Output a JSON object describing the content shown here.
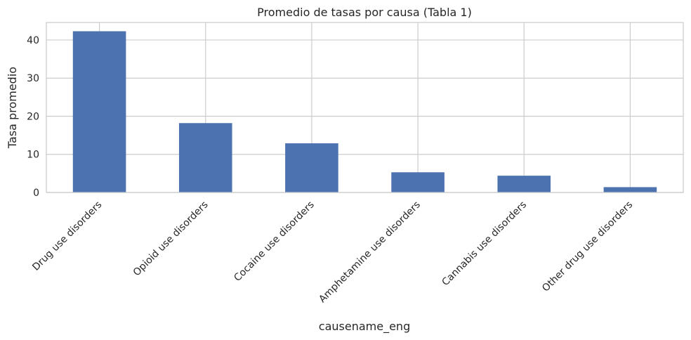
{
  "chart_data": {
    "type": "bar",
    "title": "Promedio de tasas por causa (Tabla 1)",
    "xlabel": "causename_eng",
    "ylabel": "Tasa promedio",
    "categories": [
      "Drug use disorders",
      "Opioid use disorders",
      "Cocaine use disorders",
      "Amphetamine use disorders",
      "Cannabis use disorders",
      "Other drug use disorders"
    ],
    "values": [
      42.3,
      18.2,
      12.9,
      5.3,
      4.4,
      1.4
    ],
    "ylim": [
      0,
      44.6
    ],
    "yticks": [
      0,
      10,
      20,
      30,
      40
    ],
    "grid": true,
    "bar_color": "#4c72b0",
    "grid_color": "#cccccc"
  }
}
